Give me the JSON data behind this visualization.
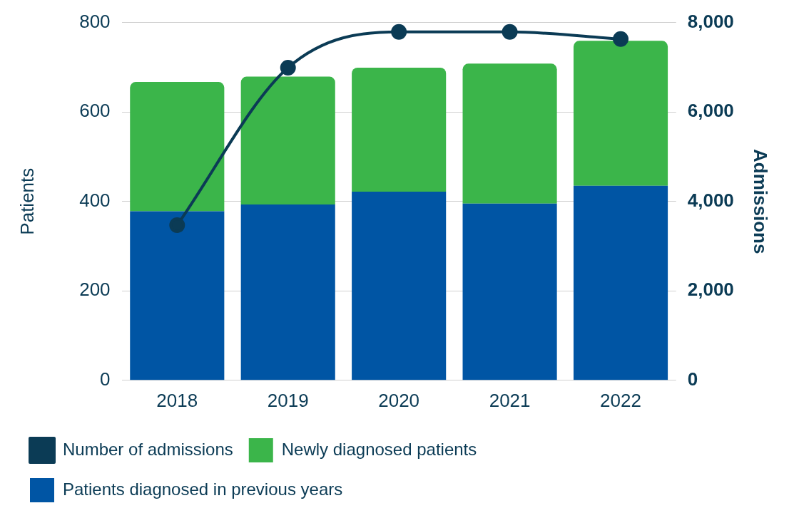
{
  "chart_data": {
    "type": "bar",
    "stacked": true,
    "categories": [
      "2018",
      "2019",
      "2020",
      "2021",
      "2022"
    ],
    "ylabel": "Patients",
    "y2label": "Admissions",
    "ylim": [
      0,
      800
    ],
    "yticks": [
      0,
      200,
      400,
      600,
      800
    ],
    "y2lim": [
      0,
      8000
    ],
    "y2ticks": [
      {
        "value": 0,
        "label": "0"
      },
      {
        "value": 2000,
        "label": "2,000"
      },
      {
        "value": 4000,
        "label": "4,000"
      },
      {
        "value": 6000,
        "label": "6,000"
      },
      {
        "value": 8000,
        "label": "8,000"
      }
    ],
    "grid": "y",
    "legend": "bottom",
    "series": [
      {
        "name": "Patients diagnosed in previous years",
        "color": "#0055a4",
        "values": [
          378,
          393,
          422,
          395,
          435
        ]
      },
      {
        "name": "Newly diagnosed patients",
        "color": "#3bb54a",
        "values": [
          289,
          286,
          277,
          313,
          324
        ]
      },
      {
        "name": "Number of admissions",
        "type": "line",
        "axis": "y2",
        "marker": "circle",
        "color": "#0b3b55",
        "values": [
          3470,
          6990,
          7790,
          7790,
          7630
        ]
      }
    ]
  }
}
